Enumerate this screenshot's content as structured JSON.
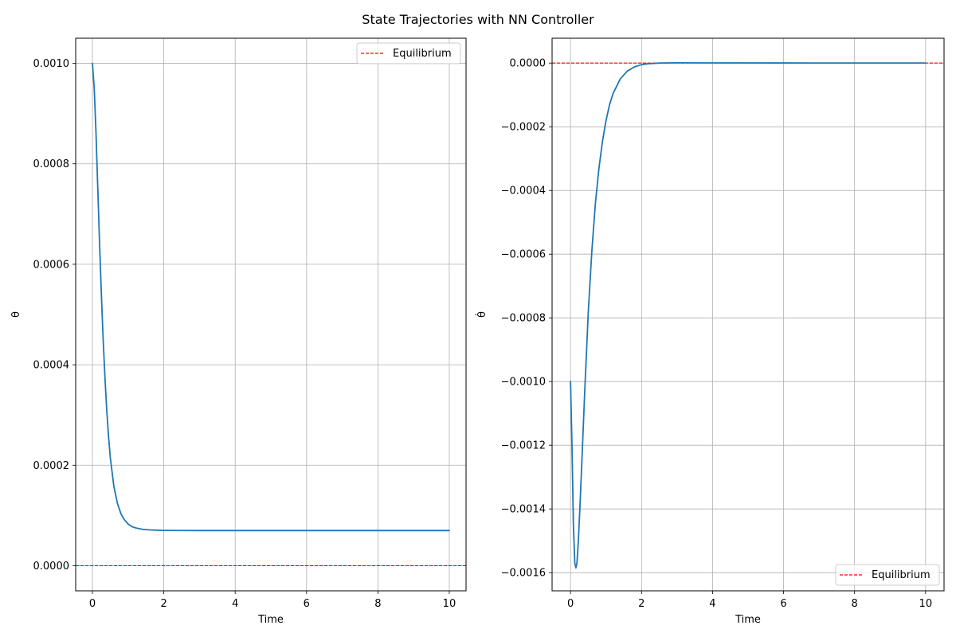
{
  "figure": {
    "title": "State Trajectories with NN Controller"
  },
  "chart_data": [
    {
      "type": "line",
      "xlabel": "Time",
      "ylabel": "θ",
      "xlim": [
        -0.47,
        10.47
      ],
      "ylim": [
        -5e-05,
        0.00105
      ],
      "xticks": [
        0,
        2,
        4,
        6,
        8,
        10
      ],
      "xtick_labels": [
        "0",
        "2",
        "4",
        "6",
        "8",
        "10"
      ],
      "yticks": [
        0.0,
        0.0002,
        0.0004,
        0.0006,
        0.0008,
        0.001
      ],
      "ytick_labels": [
        "0.0000",
        "0.0002",
        "0.0004",
        "0.0006",
        "0.0008",
        "0.0010"
      ],
      "grid": true,
      "legend_position": "top-right",
      "series": [
        {
          "name": "",
          "color": "#1f77b4",
          "x": [
            0,
            0.05,
            0.1,
            0.15,
            0.2,
            0.25,
            0.3,
            0.35,
            0.4,
            0.45,
            0.5,
            0.6,
            0.7,
            0.8,
            0.9,
            1.0,
            1.1,
            1.2,
            1.4,
            1.6,
            1.8,
            2.0,
            2.5,
            3.0,
            4.0,
            5.0,
            6.0,
            7.0,
            8.0,
            9.0,
            10.0
          ],
          "y": [
            0.001,
            0.00095,
            0.00086,
            0.00075,
            0.00064,
            0.00054,
            0.00045,
            0.000375,
            0.00031,
            0.000258,
            0.000215,
            0.000158,
            0.000124,
            0.000103,
            9.1e-05,
            8.3e-05,
            7.8e-05,
            7.55e-05,
            7.25e-05,
            7.12e-05,
            7.06e-05,
            7.03e-05,
            7.01e-05,
            7e-05,
            7e-05,
            7e-05,
            7e-05,
            7e-05,
            7e-05,
            7e-05,
            7e-05
          ]
        }
      ],
      "reference_line": {
        "name": "Equilibrium",
        "y": 0.0,
        "color": "#ff0000",
        "style": "dashed"
      }
    },
    {
      "type": "line",
      "xlabel": "Time",
      "ylabel": "θ̇",
      "xlim": [
        -0.52,
        10.52
      ],
      "ylim": [
        -0.001657,
        7.8e-05
      ],
      "xticks": [
        0,
        2,
        4,
        6,
        8,
        10
      ],
      "xtick_labels": [
        "0",
        "2",
        "4",
        "6",
        "8",
        "10"
      ],
      "yticks": [
        -0.0016,
        -0.0014,
        -0.0012,
        -0.001,
        -0.0008,
        -0.0006,
        -0.0004,
        -0.0002,
        0.0
      ],
      "ytick_labels": [
        "−0.0016",
        "−0.0014",
        "−0.0012",
        "−0.0010",
        "−0.0008",
        "−0.0006",
        "−0.0004",
        "−0.0002",
        "0.0000"
      ],
      "grid": true,
      "legend_position": "lower-right",
      "series": [
        {
          "name": "",
          "color": "#1f77b4",
          "x": [
            0,
            0.04,
            0.08,
            0.12,
            0.15,
            0.18,
            0.22,
            0.27,
            0.33,
            0.4,
            0.5,
            0.6,
            0.7,
            0.8,
            0.9,
            1.0,
            1.1,
            1.2,
            1.4,
            1.6,
            1.8,
            2.0,
            2.2,
            2.5,
            3.0,
            4.0,
            6.0,
            8.0,
            10.0
          ],
          "y": [
            -0.001,
            -0.0012,
            -0.00145,
            -0.00157,
            -0.001585,
            -0.00157,
            -0.0015,
            -0.00138,
            -0.00122,
            -0.00103,
            -0.00078,
            -0.00059,
            -0.00044,
            -0.00033,
            -0.000245,
            -0.00018,
            -0.00013,
            -9.5e-05,
            -5e-05,
            -2.5e-05,
            -1.2e-05,
            -5e-06,
            -2e-06,
            0.0,
            8e-07,
            5e-07,
            3e-07,
            2e-07,
            1e-07
          ]
        }
      ],
      "reference_line": {
        "name": "Equilibrium",
        "y": 0.0,
        "color": "#ff0000",
        "style": "dashed"
      }
    }
  ]
}
